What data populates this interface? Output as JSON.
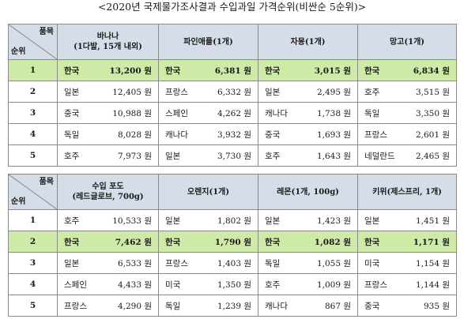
{
  "title": "<2020년 국제물가조사결과 수입과일 가격순위(비싼순 5순위)>",
  "table1": {
    "corner_top": "품목",
    "corner_bottom": "순위",
    "columns": [
      {
        "line1": "바나나",
        "line2": "(1다발, 15개 내외)"
      },
      {
        "line1": "파인애플(1개)",
        "line2": ""
      },
      {
        "line1": "자몽(1개)",
        "line2": ""
      },
      {
        "line1": "망고(1개)",
        "line2": ""
      }
    ],
    "rows": [
      {
        "rank": "1",
        "highlight": true,
        "cells": [
          {
            "c": "한국",
            "p": "13,200 원"
          },
          {
            "c": "한국",
            "p": "6,381 원"
          },
          {
            "c": "한국",
            "p": "3,015 원"
          },
          {
            "c": "한국",
            "p": "6,834 원"
          }
        ]
      },
      {
        "rank": "2",
        "highlight": false,
        "cells": [
          {
            "c": "일본",
            "p": "12,405 원"
          },
          {
            "c": "프랑스",
            "p": "6,332 원"
          },
          {
            "c": "일본",
            "p": "2,495 원"
          },
          {
            "c": "호주",
            "p": "3,515 원"
          }
        ]
      },
      {
        "rank": "3",
        "highlight": false,
        "cells": [
          {
            "c": "중국",
            "p": "10,988 원"
          },
          {
            "c": "스페인",
            "p": "4,262 원"
          },
          {
            "c": "캐나다",
            "p": "1,738 원"
          },
          {
            "c": "독일",
            "p": "3,350 원"
          }
        ]
      },
      {
        "rank": "4",
        "highlight": false,
        "cells": [
          {
            "c": "독일",
            "p": "8,028 원"
          },
          {
            "c": "캐나다",
            "p": "3,932 원"
          },
          {
            "c": "중국",
            "p": "1,693 원"
          },
          {
            "c": "프랑스",
            "p": "2,601 원"
          }
        ]
      },
      {
        "rank": "5",
        "highlight": false,
        "cells": [
          {
            "c": "호주",
            "p": "7,973 원"
          },
          {
            "c": "일본",
            "p": "3,730 원"
          },
          {
            "c": "호주",
            "p": "1,643 원"
          },
          {
            "c": "네덜란드",
            "p": "2,465 원"
          }
        ]
      }
    ]
  },
  "table2": {
    "corner_top": "품목",
    "corner_bottom": "순위",
    "columns": [
      {
        "line1": "수입 포도",
        "line2": "(레드글로브, 700g)"
      },
      {
        "line1": "오렌지(1개)",
        "line2": ""
      },
      {
        "line1": "레몬(1개, 100g)",
        "line2": ""
      },
      {
        "line1": "키위(제스프리, 1개)",
        "line2": ""
      }
    ],
    "rows": [
      {
        "rank": "1",
        "highlight": false,
        "cells": [
          {
            "c": "호주",
            "p": "10,533 원"
          },
          {
            "c": "일본",
            "p": "1,802 원"
          },
          {
            "c": "일본",
            "p": "1,423 원"
          },
          {
            "c": "일본",
            "p": "1,451 원"
          }
        ]
      },
      {
        "rank": "2",
        "highlight": true,
        "cells": [
          {
            "c": "한국",
            "p": "7,462 원"
          },
          {
            "c": "한국",
            "p": "1,790 원"
          },
          {
            "c": "한국",
            "p": "1,082 원"
          },
          {
            "c": "한국",
            "p": "1,171 원"
          }
        ]
      },
      {
        "rank": "3",
        "highlight": false,
        "cells": [
          {
            "c": "일본",
            "p": "6,533 원"
          },
          {
            "c": "프랑스",
            "p": "1,403 원"
          },
          {
            "c": "독일",
            "p": "1,055 원"
          },
          {
            "c": "미국",
            "p": "1,154 원"
          }
        ]
      },
      {
        "rank": "4",
        "highlight": false,
        "cells": [
          {
            "c": "스페인",
            "p": "4,433 원"
          },
          {
            "c": "미국",
            "p": "1,350 원"
          },
          {
            "c": "호주",
            "p": "1,009 원"
          },
          {
            "c": "프랑스",
            "p": "1,144 원"
          }
        ]
      },
      {
        "rank": "5",
        "highlight": false,
        "cells": [
          {
            "c": "프랑스",
            "p": "4,290 원"
          },
          {
            "c": "독일",
            "p": "1,239 원"
          },
          {
            "c": "캐나다",
            "p": "867 원"
          },
          {
            "c": "중국",
            "p": "935 원"
          }
        ]
      }
    ]
  }
}
